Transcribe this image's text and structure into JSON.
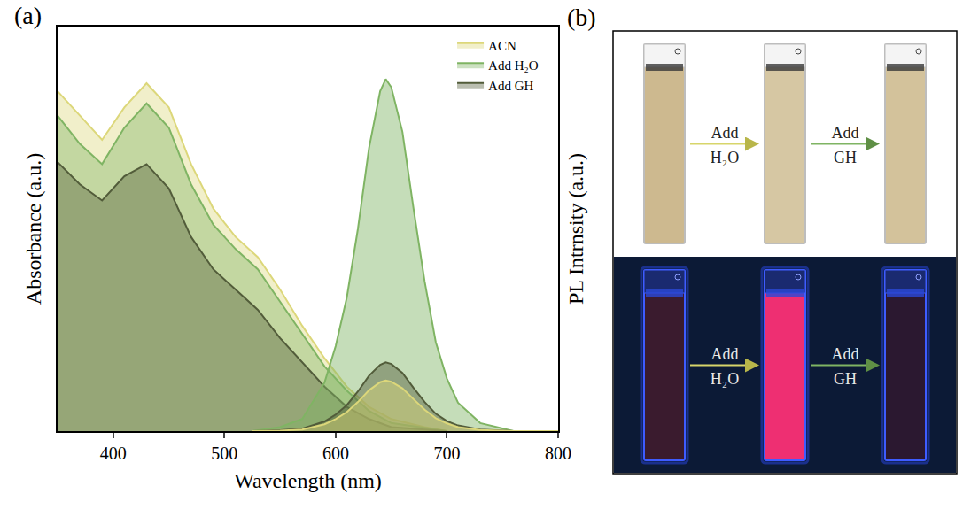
{
  "chart_data": {
    "type": "line",
    "label": "(a)",
    "x_label": "Wavelength (nm)",
    "y_label": "Absorbance (a.u.)",
    "y2_label": "PL Intrnsity (a.u.)",
    "xlim": [
      350,
      800
    ],
    "xticks": [
      400,
      500,
      600,
      700,
      800
    ],
    "ylim": [
      0,
      1
    ],
    "y2lim": [
      0,
      1
    ],
    "tick_labels": "x",
    "legend": "top right",
    "series": [
      {
        "name": "ACN",
        "color": "#dcd77a",
        "x": [
          350,
          370,
          390,
          410,
          430,
          450,
          470,
          490,
          510,
          530,
          550,
          570,
          590,
          610,
          630,
          650,
          680,
          700
        ],
        "values": [
          0.84,
          0.78,
          0.72,
          0.8,
          0.86,
          0.8,
          0.66,
          0.55,
          0.48,
          0.43,
          0.35,
          0.26,
          0.18,
          0.11,
          0.06,
          0.03,
          0.01,
          0
        ]
      },
      {
        "name": "Add H₂O",
        "color": "#7fb463",
        "x": [
          350,
          370,
          390,
          410,
          430,
          450,
          470,
          490,
          510,
          530,
          550,
          570,
          590,
          610,
          630,
          650,
          700
        ],
        "values": [
          0.78,
          0.71,
          0.66,
          0.75,
          0.81,
          0.75,
          0.61,
          0.51,
          0.45,
          0.4,
          0.32,
          0.24,
          0.16,
          0.1,
          0.05,
          0.02,
          0
        ]
      },
      {
        "name": "Add GH",
        "color": "#525c3a",
        "x": [
          350,
          370,
          390,
          410,
          430,
          450,
          470,
          490,
          510,
          530,
          550,
          570,
          590,
          610,
          630,
          650,
          700
        ],
        "values": [
          0.665,
          0.61,
          0.57,
          0.63,
          0.66,
          0.6,
          0.48,
          0.4,
          0.35,
          0.3,
          0.23,
          0.17,
          0.11,
          0.06,
          0.03,
          0.01,
          0
        ]
      },
      {
        "name": "Add H₂O",
        "color": "#7fb463",
        "axis": "y2",
        "x": [
          525,
          550,
          570,
          590,
          600,
          610,
          620,
          630,
          640,
          645,
          650,
          660,
          670,
          680,
          690,
          700,
          710,
          730,
          760,
          800
        ],
        "values": [
          0,
          0.01,
          0.03,
          0.12,
          0.21,
          0.33,
          0.5,
          0.7,
          0.84,
          0.87,
          0.85,
          0.74,
          0.55,
          0.37,
          0.22,
          0.13,
          0.07,
          0.02,
          0,
          0
        ]
      },
      {
        "name": "Add GH",
        "color": "#525c3a",
        "axis": "y2",
        "x": [
          525,
          550,
          570,
          590,
          600,
          610,
          620,
          630,
          640,
          645,
          650,
          660,
          670,
          680,
          690,
          700,
          710,
          730,
          760,
          800
        ],
        "values": [
          0,
          0.002,
          0.006,
          0.024,
          0.041,
          0.064,
          0.098,
          0.137,
          0.164,
          0.17,
          0.166,
          0.144,
          0.107,
          0.072,
          0.043,
          0.025,
          0.014,
          0.004,
          0,
          0
        ]
      },
      {
        "name": "ACN",
        "color": "#dcd77a",
        "axis": "y2",
        "x": [
          525,
          550,
          570,
          590,
          600,
          610,
          620,
          630,
          640,
          645,
          650,
          660,
          670,
          680,
          690,
          700,
          710,
          730,
          760,
          800
        ],
        "values": [
          0,
          0.001,
          0.004,
          0.017,
          0.03,
          0.047,
          0.072,
          0.101,
          0.121,
          0.125,
          0.122,
          0.106,
          0.079,
          0.053,
          0.032,
          0.019,
          0.01,
          0.003,
          0,
          0
        ]
      }
    ]
  },
  "panel_b": {
    "label": "(b)",
    "steps": [
      "Add H₂O",
      "Add GH"
    ]
  }
}
